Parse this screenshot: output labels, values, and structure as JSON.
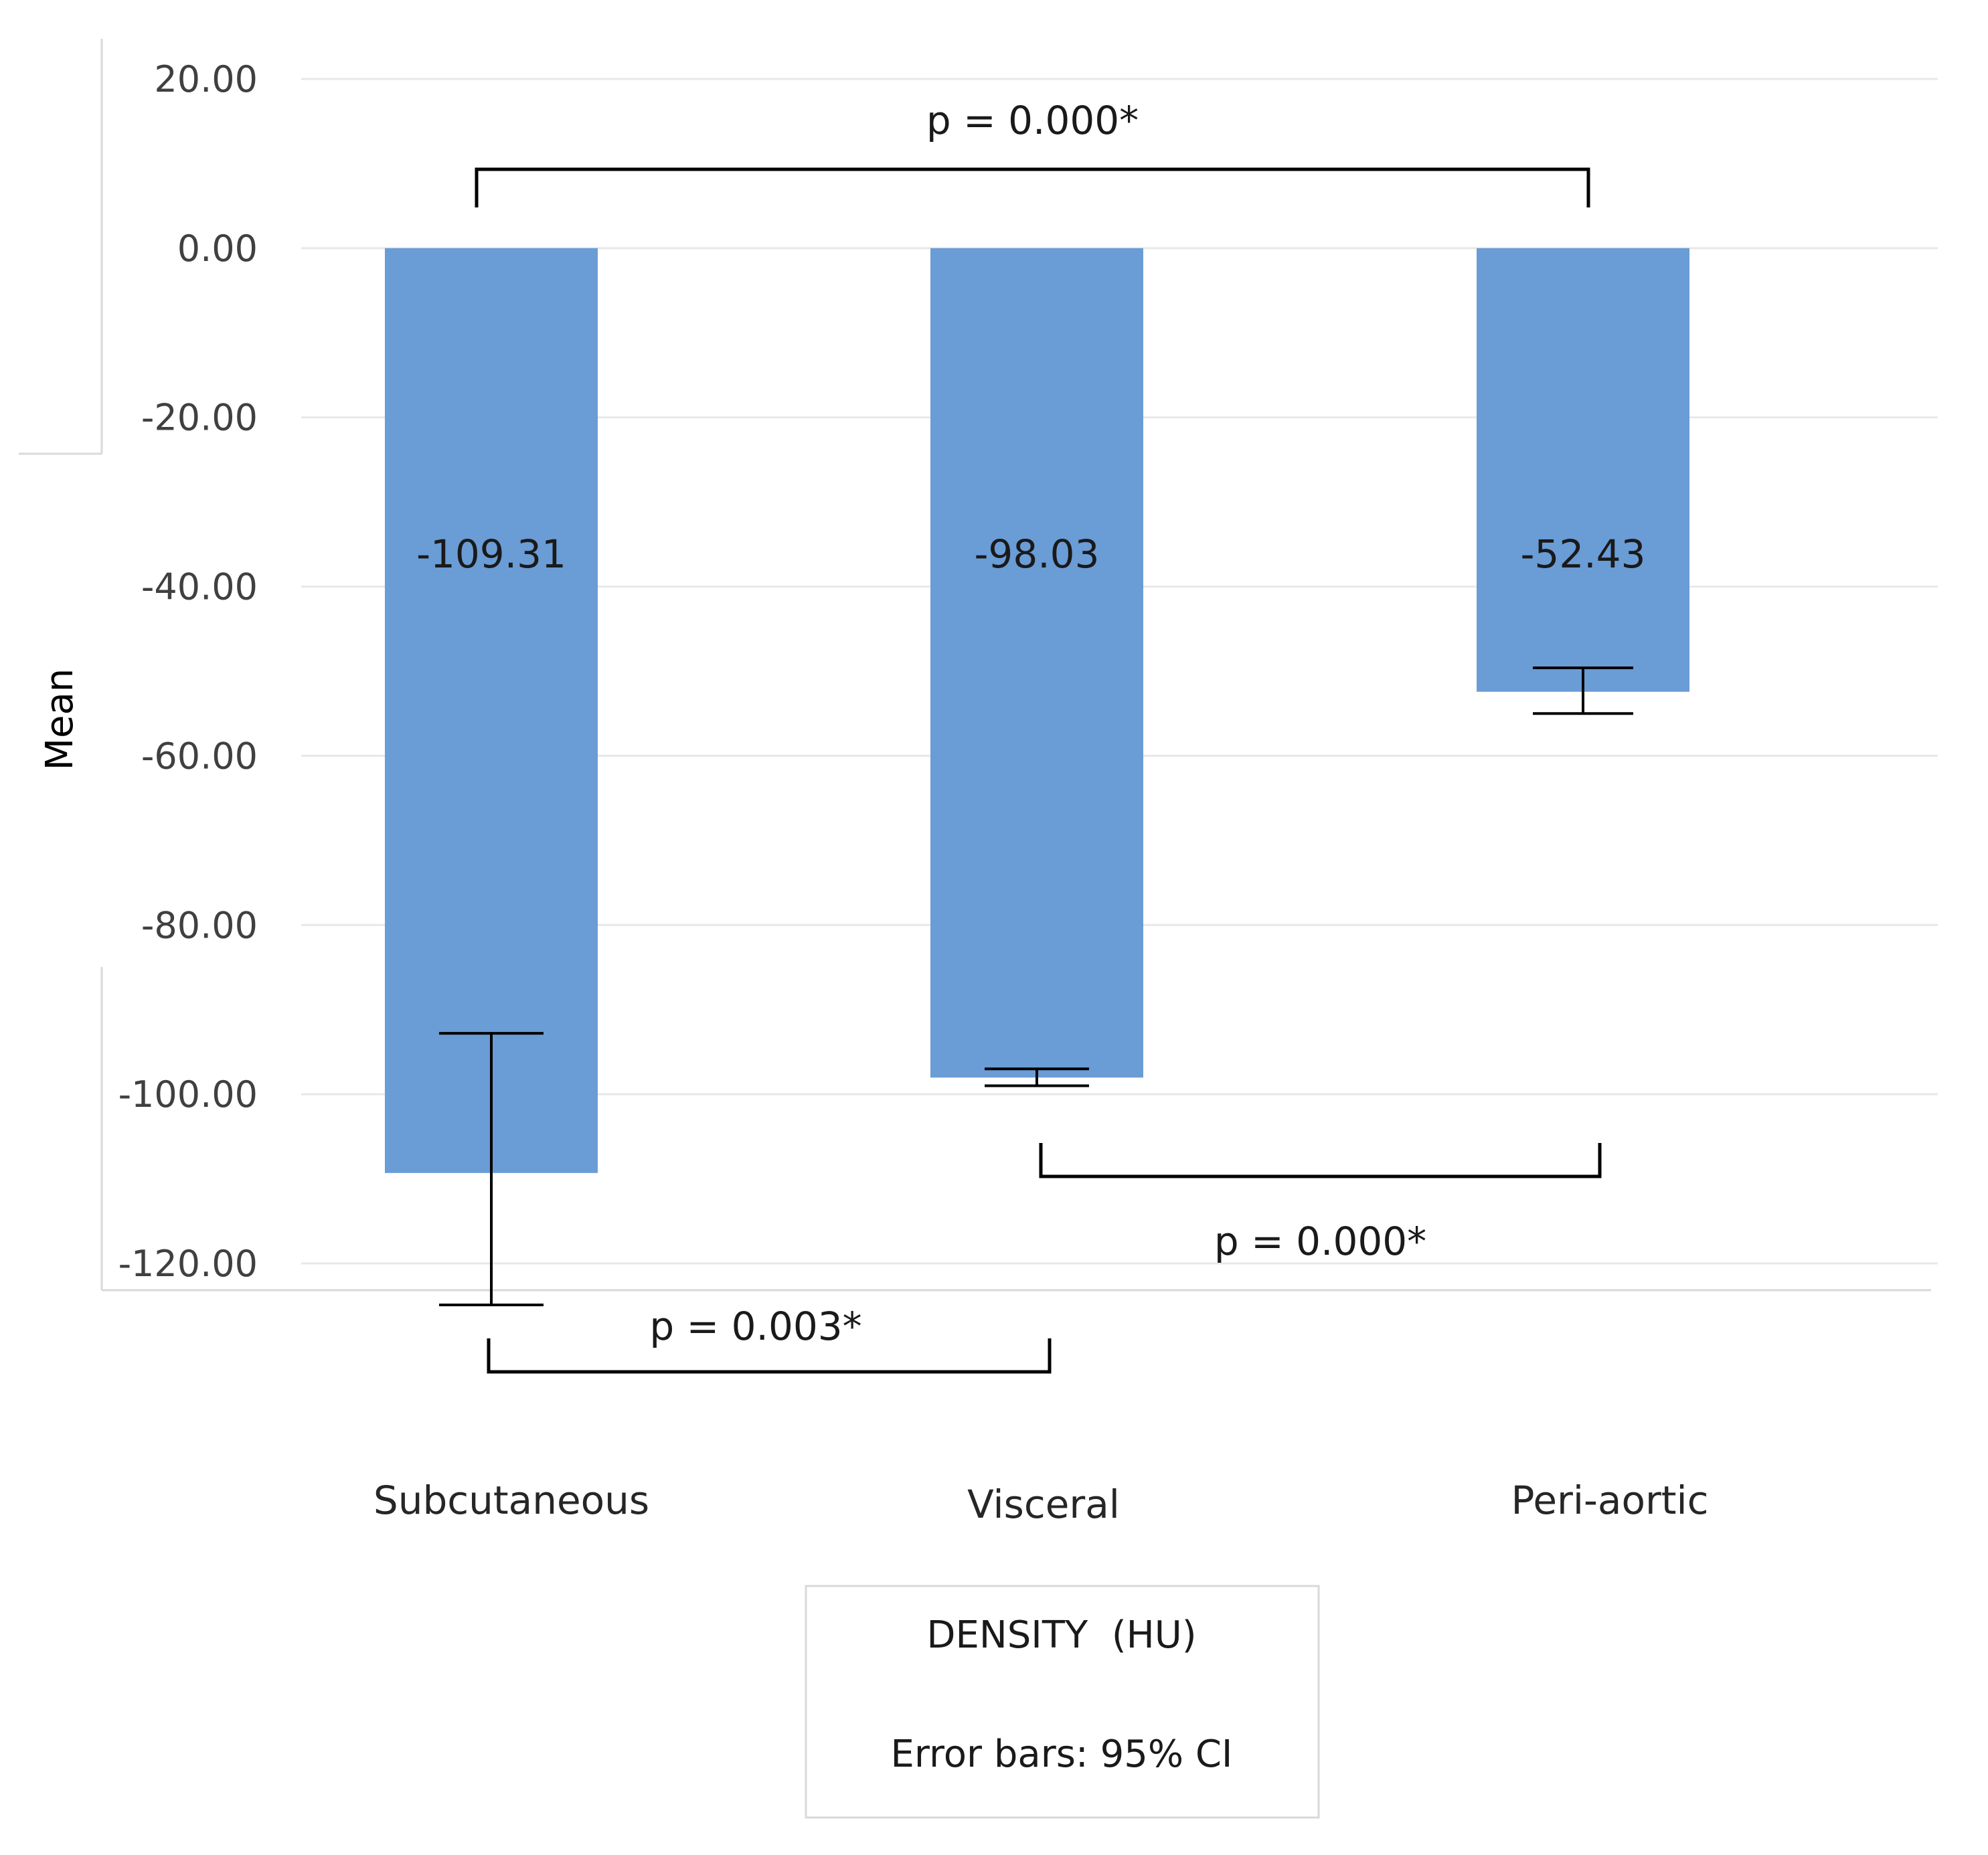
{
  "chart_data": {
    "type": "bar",
    "categories": [
      "Subcutaneous",
      "Visceral",
      "Peri-aortic"
    ],
    "values": [
      -109.31,
      -98.03,
      -52.43
    ],
    "data_labels": [
      "-109.31",
      "-98.03",
      "-52.43"
    ],
    "error_bars": [
      {
        "low": -124.9,
        "high": -92.8
      },
      {
        "low": -99.0,
        "high": -97.0
      },
      {
        "low": -55.0,
        "high": -49.6
      }
    ],
    "ylabel": "Mean",
    "xlabel": "",
    "ylim": [
      -120,
      20
    ],
    "yticks": [
      20,
      0,
      -20,
      -40,
      -60,
      -80,
      -100,
      -120
    ],
    "ytick_labels": [
      "20.00",
      "0.00",
      "-20.00",
      "-40.00",
      "-60.00",
      "-80.00",
      "-100.00",
      "-120.00"
    ],
    "grid": true,
    "bar_color": "#6a9cd6",
    "comparisons": [
      {
        "from": 0,
        "to": 2,
        "label": "p = 0.000*"
      },
      {
        "from": 1,
        "to": 2,
        "label": "p = 0.000*"
      },
      {
        "from": 0,
        "to": 1,
        "label": "p = 0.003*"
      }
    ],
    "legend": {
      "title": "DENSITY  (HU)",
      "note": "Error bars: 95% CI"
    }
  }
}
